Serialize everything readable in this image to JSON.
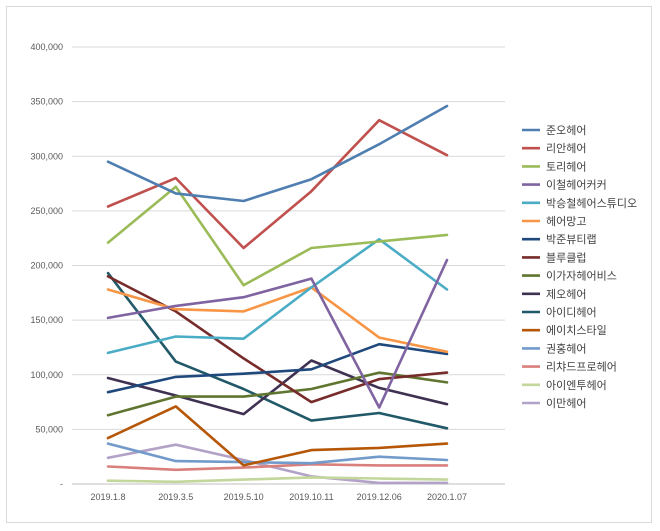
{
  "chart_data": {
    "type": "line",
    "title": "",
    "xlabel": "",
    "ylabel": "",
    "ylim": [
      0,
      400000
    ],
    "grid": true,
    "legend_position": "right",
    "categories": [
      "2019.1.8",
      "2019.3.5",
      "2019.5.10",
      "2019.10.11",
      "2019.12.06",
      "2020.1.07"
    ],
    "y_ticks": [
      {
        "value": 0,
        "label": "-"
      },
      {
        "value": 50000,
        "label": "50,000"
      },
      {
        "value": 100000,
        "label": "100,000"
      },
      {
        "value": 150000,
        "label": "150,000"
      },
      {
        "value": 200000,
        "label": "200,000"
      },
      {
        "value": 250000,
        "label": "250,000"
      },
      {
        "value": 300000,
        "label": "300,000"
      },
      {
        "value": 350000,
        "label": "350,000"
      },
      {
        "value": 400000,
        "label": "400,000"
      }
    ],
    "series": [
      {
        "name": "준오헤어",
        "color": "#4f7eb0",
        "values": [
          295000,
          266000,
          259000,
          279000,
          311000,
          346000
        ]
      },
      {
        "name": "리안헤어",
        "color": "#c0504d",
        "values": [
          254000,
          280000,
          216000,
          268000,
          333000,
          301000
        ]
      },
      {
        "name": "토리헤어",
        "color": "#9bbb59",
        "values": [
          221000,
          272000,
          182000,
          216000,
          222000,
          228000
        ]
      },
      {
        "name": "이철헤어커커",
        "color": "#8064a2",
        "values": [
          152000,
          163000,
          171000,
          188000,
          70000,
          205000
        ]
      },
      {
        "name": "박승철헤어스튜디오",
        "color": "#4bacc6",
        "values": [
          120000,
          135000,
          133000,
          180000,
          224000,
          178000
        ]
      },
      {
        "name": "헤어망고",
        "color": "#f79646",
        "values": [
          178000,
          160000,
          158000,
          180000,
          134000,
          121000
        ]
      },
      {
        "name": "박준뷰티랩",
        "color": "#1f497d",
        "values": [
          84000,
          98000,
          101000,
          105000,
          128000,
          119000
        ]
      },
      {
        "name": "블루클럽",
        "color": "#772c2a",
        "values": [
          190000,
          158000,
          115000,
          75000,
          96000,
          102000
        ]
      },
      {
        "name": "이가자헤어비스",
        "color": "#5f7530",
        "values": [
          63000,
          80000,
          80000,
          87000,
          102000,
          93000
        ]
      },
      {
        "name": "제오헤어",
        "color": "#3f3151",
        "values": [
          97000,
          81000,
          64000,
          113000,
          88000,
          73000
        ]
      },
      {
        "name": "아이디헤어",
        "color": "#215968",
        "values": [
          193000,
          112000,
          87000,
          58000,
          65000,
          51000
        ]
      },
      {
        "name": "에이치스타일",
        "color": "#b65708",
        "values": [
          42000,
          71000,
          17000,
          31000,
          33000,
          37000
        ]
      },
      {
        "name": "권홍헤어",
        "color": "#729aca",
        "values": [
          37000,
          21000,
          20000,
          19000,
          25000,
          22000
        ]
      },
      {
        "name": "리챠드프로헤어",
        "color": "#d9807c",
        "values": [
          16000,
          13000,
          15000,
          18000,
          17000,
          17000
        ]
      },
      {
        "name": "아이엔투헤어",
        "color": "#c3d69b",
        "values": [
          3000,
          2000,
          4000,
          6000,
          5000,
          4000
        ]
      },
      {
        "name": "이만헤어",
        "color": "#b3a2c7",
        "values": [
          24000,
          36000,
          22000,
          7000,
          1000,
          1000
        ]
      }
    ]
  }
}
